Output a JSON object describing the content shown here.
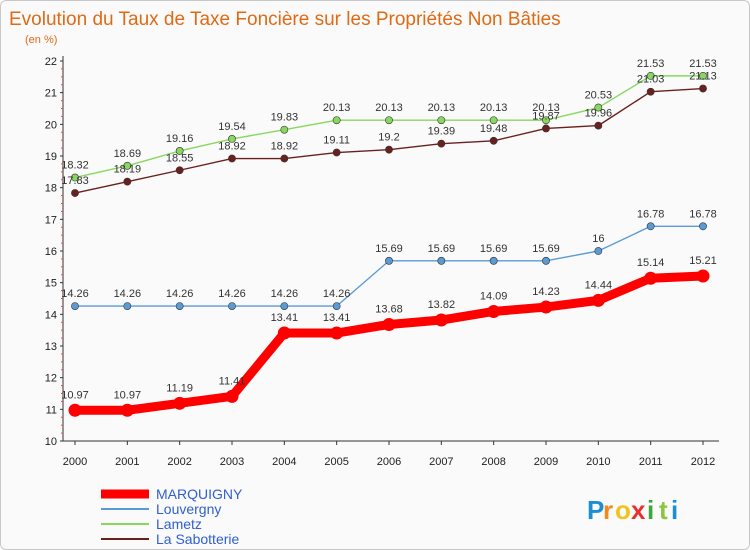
{
  "chart_data": {
    "type": "line",
    "title": "Evolution du Taux de Taxe Foncière sur les Propriétés Non Bâties",
    "subtitle": "(en %)",
    "x": [
      "2000",
      "2001",
      "2002",
      "2003",
      "2004",
      "2005",
      "2006",
      "2007",
      "2008",
      "2009",
      "2010",
      "2011",
      "2012"
    ],
    "ylim": [
      10,
      22
    ],
    "yticks": [
      10,
      11,
      12,
      13,
      14,
      15,
      16,
      17,
      18,
      19,
      20,
      21,
      22
    ],
    "grid": false,
    "legend_position": "bottom-left",
    "series": [
      {
        "name": "MARQUIGNY",
        "color": "#ff0000",
        "values": [
          10.97,
          10.97,
          11.19,
          11.41,
          13.41,
          13.41,
          13.68,
          13.82,
          14.09,
          14.23,
          14.44,
          15.14,
          15.21
        ],
        "labels": [
          "10.97",
          "10.97",
          "11.19",
          "11.41",
          "13.41",
          "13.41",
          "13.68",
          "13.82",
          "14.09",
          "14.23",
          "14.44",
          "15.14",
          "15.21"
        ]
      },
      {
        "name": "Louvergny",
        "color": "#5b9bd5",
        "values": [
          14.26,
          14.26,
          14.26,
          14.26,
          14.26,
          14.26,
          15.69,
          15.69,
          15.69,
          15.69,
          16,
          16.78,
          16.78
        ],
        "labels": [
          "14.26",
          "14.26",
          "14.26",
          "14.26",
          "14.26",
          "14.26",
          "15.69",
          "15.69",
          "15.69",
          "15.69",
          "16",
          "16.78",
          "16.78"
        ]
      },
      {
        "name": "Lametz",
        "color": "#88d860",
        "values": [
          18.32,
          18.69,
          19.16,
          19.54,
          19.83,
          20.13,
          20.13,
          20.13,
          20.13,
          20.13,
          20.53,
          21.53,
          21.53
        ],
        "labels": [
          "18.32",
          "18.69",
          "19.16",
          "19.54",
          "19.83",
          "20.13",
          "20.13",
          "20.13",
          "20.13",
          "20.13",
          "20.53",
          "21.53",
          "21.53"
        ]
      },
      {
        "name": "La Sabotterie",
        "color": "#6b2020",
        "values": [
          17.83,
          18.19,
          18.55,
          18.92,
          18.92,
          19.11,
          19.2,
          19.39,
          19.48,
          19.87,
          19.96,
          21.03,
          21.13
        ],
        "labels": [
          "17.83",
          "18.19",
          "18.55",
          "18.92",
          "18.92",
          "19.11",
          "19.2",
          "19.39",
          "19.48",
          "19.87",
          "19.96",
          "21.03",
          "21.13"
        ]
      }
    ]
  },
  "logo": {
    "letters": [
      "P",
      "r",
      "o",
      "x",
      "i",
      "t",
      "i"
    ],
    "colors": [
      "#1a8fd6",
      "#f08a1c",
      "#f2c31f",
      "#e83030",
      "#3aa83a",
      "#8cc63f",
      "#1a8fd6"
    ]
  }
}
